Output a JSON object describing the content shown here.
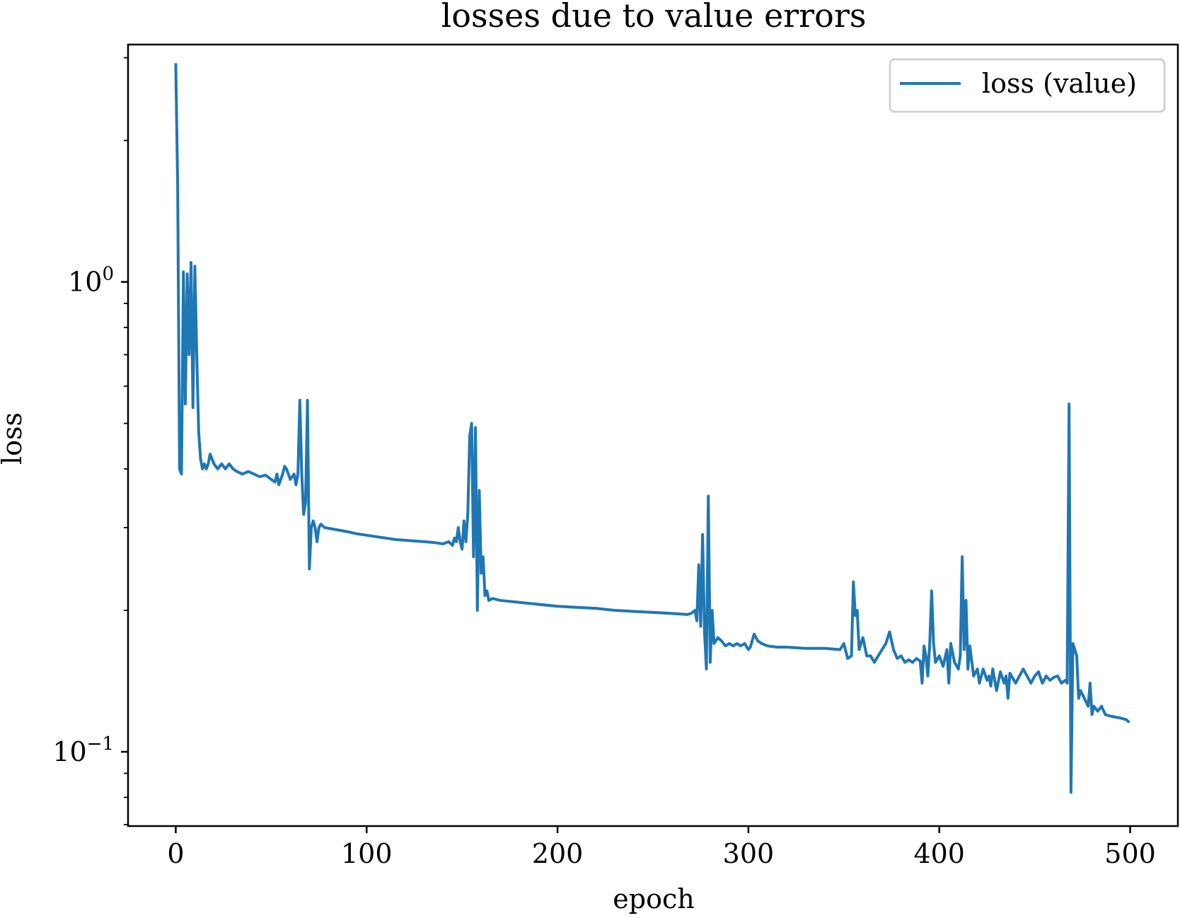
{
  "chart_data": {
    "type": "line",
    "title": "losses due to value errors",
    "xlabel": "epoch",
    "ylabel": "loss",
    "yscale": "log",
    "xlim": [
      -25,
      525
    ],
    "ylim": [
      0.0695,
      3.2
    ],
    "xticks": [
      0,
      100,
      200,
      300,
      400,
      500
    ],
    "xtick_labels": [
      "0",
      "100",
      "200",
      "300",
      "400",
      "500"
    ],
    "yticks_major": [
      {
        "value": 1.0,
        "base": "10",
        "exp": "0"
      },
      {
        "value": 0.1,
        "base": "10",
        "exp": "−1"
      }
    ],
    "legend": {
      "position": "upper right",
      "entries": [
        "loss (value)"
      ]
    },
    "grid": false,
    "colors": {
      "series": "#1f77b4",
      "axes": "#000000",
      "legend_border": "#cccccc"
    },
    "series": [
      {
        "name": "loss (value)",
        "points": [
          [
            0,
            2.9
          ],
          [
            1,
            1.6
          ],
          [
            2,
            0.4
          ],
          [
            3,
            0.39
          ],
          [
            4,
            1.05
          ],
          [
            5,
            0.55
          ],
          [
            6,
            1.04
          ],
          [
            7,
            0.7
          ],
          [
            8,
            1.1
          ],
          [
            9,
            0.54
          ],
          [
            10,
            1.08
          ],
          [
            11,
            0.7
          ],
          [
            12,
            0.48
          ],
          [
            13,
            0.42
          ],
          [
            14,
            0.4
          ],
          [
            15,
            0.41
          ],
          [
            16,
            0.4
          ],
          [
            17,
            0.41
          ],
          [
            18,
            0.43
          ],
          [
            19,
            0.42
          ],
          [
            20,
            0.41
          ],
          [
            22,
            0.4
          ],
          [
            24,
            0.41
          ],
          [
            26,
            0.4
          ],
          [
            28,
            0.41
          ],
          [
            30,
            0.4
          ],
          [
            32,
            0.395
          ],
          [
            35,
            0.39
          ],
          [
            38,
            0.395
          ],
          [
            41,
            0.39
          ],
          [
            44,
            0.385
          ],
          [
            47,
            0.388
          ],
          [
            50,
            0.38
          ],
          [
            52,
            0.375
          ],
          [
            53,
            0.39
          ],
          [
            54,
            0.37
          ],
          [
            55,
            0.38
          ],
          [
            56,
            0.39
          ],
          [
            57,
            0.405
          ],
          [
            58,
            0.4
          ],
          [
            59,
            0.39
          ],
          [
            60,
            0.38
          ],
          [
            61,
            0.385
          ],
          [
            62,
            0.39
          ],
          [
            63,
            0.37
          ],
          [
            64,
            0.39
          ],
          [
            65,
            0.56
          ],
          [
            66,
            0.39
          ],
          [
            67,
            0.32
          ],
          [
            68,
            0.34
          ],
          [
            69,
            0.56
          ],
          [
            70,
            0.245
          ],
          [
            71,
            0.3
          ],
          [
            72,
            0.31
          ],
          [
            73,
            0.3
          ],
          [
            74,
            0.28
          ],
          [
            75,
            0.3
          ],
          [
            76,
            0.305
          ],
          [
            78,
            0.3
          ],
          [
            82,
            0.298
          ],
          [
            86,
            0.296
          ],
          [
            90,
            0.294
          ],
          [
            95,
            0.291
          ],
          [
            100,
            0.289
          ],
          [
            105,
            0.287
          ],
          [
            110,
            0.285
          ],
          [
            115,
            0.283
          ],
          [
            120,
            0.282
          ],
          [
            125,
            0.281
          ],
          [
            130,
            0.28
          ],
          [
            135,
            0.279
          ],
          [
            140,
            0.277
          ],
          [
            143,
            0.28
          ],
          [
            145,
            0.275
          ],
          [
            146,
            0.285
          ],
          [
            147,
            0.28
          ],
          [
            148,
            0.3
          ],
          [
            149,
            0.28
          ],
          [
            150,
            0.27
          ],
          [
            151,
            0.31
          ],
          [
            152,
            0.28
          ],
          [
            153,
            0.32
          ],
          [
            154,
            0.47
          ],
          [
            155,
            0.5
          ],
          [
            156,
            0.26
          ],
          [
            157,
            0.49
          ],
          [
            158,
            0.2
          ],
          [
            159,
            0.36
          ],
          [
            160,
            0.24
          ],
          [
            161,
            0.26
          ],
          [
            162,
            0.215
          ],
          [
            163,
            0.22
          ],
          [
            164,
            0.21
          ],
          [
            166,
            0.212
          ],
          [
            170,
            0.21
          ],
          [
            175,
            0.209
          ],
          [
            180,
            0.208
          ],
          [
            190,
            0.206
          ],
          [
            200,
            0.204
          ],
          [
            210,
            0.203
          ],
          [
            220,
            0.202
          ],
          [
            230,
            0.2
          ],
          [
            240,
            0.199
          ],
          [
            250,
            0.198
          ],
          [
            260,
            0.197
          ],
          [
            268,
            0.196
          ],
          [
            270,
            0.197
          ],
          [
            272,
            0.2
          ],
          [
            273,
            0.19
          ],
          [
            274,
            0.25
          ],
          [
            275,
            0.185
          ],
          [
            276,
            0.29
          ],
          [
            277,
            0.18
          ],
          [
            278,
            0.15
          ],
          [
            279,
            0.35
          ],
          [
            280,
            0.155
          ],
          [
            281,
            0.2
          ],
          [
            282,
            0.17
          ],
          [
            284,
            0.175
          ],
          [
            286,
            0.172
          ],
          [
            288,
            0.168
          ],
          [
            290,
            0.17
          ],
          [
            292,
            0.168
          ],
          [
            294,
            0.17
          ],
          [
            296,
            0.168
          ],
          [
            298,
            0.17
          ],
          [
            300,
            0.165
          ],
          [
            301,
            0.167
          ],
          [
            303,
            0.178
          ],
          [
            305,
            0.172
          ],
          [
            307,
            0.17
          ],
          [
            310,
            0.168
          ],
          [
            315,
            0.167
          ],
          [
            320,
            0.167
          ],
          [
            330,
            0.166
          ],
          [
            340,
            0.166
          ],
          [
            348,
            0.165
          ],
          [
            350,
            0.17
          ],
          [
            352,
            0.158
          ],
          [
            354,
            0.16
          ],
          [
            355,
            0.23
          ],
          [
            356,
            0.195
          ],
          [
            357,
            0.2
          ],
          [
            358,
            0.165
          ],
          [
            359,
            0.17
          ],
          [
            360,
            0.175
          ],
          [
            362,
            0.16
          ],
          [
            364,
            0.16
          ],
          [
            366,
            0.155
          ],
          [
            368,
            0.16
          ],
          [
            370,
            0.165
          ],
          [
            372,
            0.17
          ],
          [
            374,
            0.18
          ],
          [
            376,
            0.165
          ],
          [
            378,
            0.158
          ],
          [
            380,
            0.16
          ],
          [
            382,
            0.155
          ],
          [
            384,
            0.157
          ],
          [
            386,
            0.155
          ],
          [
            388,
            0.158
          ],
          [
            390,
            0.156
          ],
          [
            391,
            0.14
          ],
          [
            392,
            0.168
          ],
          [
            393,
            0.16
          ],
          [
            394,
            0.145
          ],
          [
            395,
            0.17
          ],
          [
            396,
            0.22
          ],
          [
            397,
            0.17
          ],
          [
            398,
            0.155
          ],
          [
            400,
            0.16
          ],
          [
            402,
            0.152
          ],
          [
            404,
            0.165
          ],
          [
            405,
            0.14
          ],
          [
            406,
            0.17
          ],
          [
            408,
            0.155
          ],
          [
            410,
            0.15
          ],
          [
            411,
            0.16
          ],
          [
            412,
            0.26
          ],
          [
            413,
            0.165
          ],
          [
            414,
            0.21
          ],
          [
            415,
            0.15
          ],
          [
            416,
            0.168
          ],
          [
            418,
            0.145
          ],
          [
            420,
            0.15
          ],
          [
            421,
            0.14
          ],
          [
            423,
            0.15
          ],
          [
            425,
            0.142
          ],
          [
            426,
            0.145
          ],
          [
            427,
            0.138
          ],
          [
            428,
            0.15
          ],
          [
            430,
            0.135
          ],
          [
            432,
            0.148
          ],
          [
            434,
            0.14
          ],
          [
            435,
            0.145
          ],
          [
            436,
            0.13
          ],
          [
            437,
            0.147
          ],
          [
            440,
            0.14
          ],
          [
            442,
            0.145
          ],
          [
            444,
            0.15
          ],
          [
            446,
            0.145
          ],
          [
            448,
            0.14
          ],
          [
            450,
            0.145
          ],
          [
            452,
            0.148
          ],
          [
            454,
            0.14
          ],
          [
            456,
            0.145
          ],
          [
            458,
            0.142
          ],
          [
            460,
            0.144
          ],
          [
            462,
            0.145
          ],
          [
            464,
            0.14
          ],
          [
            466,
            0.142
          ],
          [
            467,
            0.14
          ],
          [
            468,
            0.55
          ],
          [
            469,
            0.082
          ],
          [
            470,
            0.17
          ],
          [
            471,
            0.165
          ],
          [
            472,
            0.16
          ],
          [
            473,
            0.13
          ],
          [
            474,
            0.135
          ],
          [
            476,
            0.13
          ],
          [
            478,
            0.125
          ],
          [
            479,
            0.14
          ],
          [
            480,
            0.12
          ],
          [
            481,
            0.125
          ],
          [
            483,
            0.122
          ],
          [
            485,
            0.125
          ],
          [
            487,
            0.12
          ],
          [
            490,
            0.119
          ],
          [
            495,
            0.118
          ],
          [
            498,
            0.117
          ],
          [
            499,
            0.116
          ]
        ]
      }
    ]
  }
}
